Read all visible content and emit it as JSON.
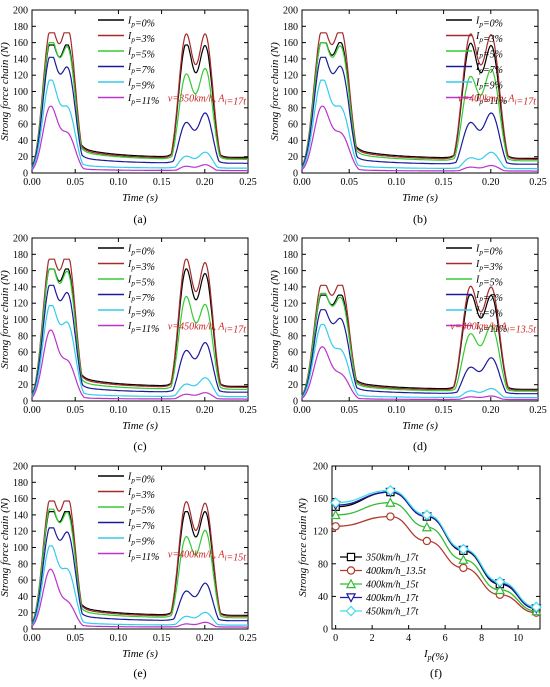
{
  "colors": {
    "p0": "#000000",
    "p3": "#a52a2a",
    "p5": "#33cc33",
    "p7": "#1a1a9c",
    "p9": "#33ccee",
    "p11": "#bb33cc",
    "annotation": "#cc2222",
    "f_350": "#000000",
    "f_400_13": "#b03a2e",
    "f_400_15": "#33bb33",
    "f_400_17": "#1a1aa0",
    "f_450": "#44ddee"
  },
  "chart_data": [
    {
      "panel": "(a)",
      "type": "line",
      "xlabel": "Time (s)",
      "ylabel": "Strong force chain (N)",
      "xlim": [
        0,
        0.25
      ],
      "ylim": [
        0,
        200
      ],
      "xticks": [
        "0.00",
        "0.05",
        "0.10",
        "0.15",
        "0.20",
        "0.25"
      ],
      "yticks": [
        "0",
        "20",
        "40",
        "60",
        "80",
        "100",
        "120",
        "140",
        "160",
        "180",
        "200"
      ],
      "annotation": "v=350km/h, A_l=17t",
      "legend": [
        "I_p=0%",
        "I_p=3%",
        "I_p=5%",
        "I_p=7%",
        "I_p=9%",
        "I_p=11%"
      ],
      "legend_position": "top-center",
      "base": [
        32,
        30,
        28,
        20,
        10,
        5
      ],
      "series": [
        {
          "name": "I_p=0%",
          "color_key": "p0",
          "peaks": [
            155,
            150,
            155,
            152
          ]
        },
        {
          "name": "I_p=3%",
          "color_key": "p3",
          "peaks": [
            170,
            170,
            166,
            166
          ]
        },
        {
          "name": "I_p=5%",
          "color_key": "p5",
          "peaks": [
            158,
            146,
            118,
            125
          ]
        },
        {
          "name": "I_p=7%",
          "color_key": "p7",
          "peaks": [
            140,
            122,
            60,
            72
          ]
        },
        {
          "name": "I_p=9%",
          "color_key": "p9",
          "peaks": [
            112,
            75,
            20,
            25
          ]
        },
        {
          "name": "I_p=11%",
          "color_key": "p11",
          "peaks": [
            80,
            45,
            8,
            10
          ]
        }
      ]
    },
    {
      "panel": "(b)",
      "type": "line",
      "xlabel": "Time (s)",
      "ylabel": "Strong force chain (N)",
      "xlim": [
        0,
        0.25
      ],
      "ylim": [
        0,
        200
      ],
      "xticks": [
        "0.00",
        "0.05",
        "0.10",
        "0.15",
        "0.20",
        "0.25"
      ],
      "yticks": [
        "0",
        "20",
        "40",
        "60",
        "80",
        "100",
        "120",
        "140",
        "160",
        "180",
        "200"
      ],
      "annotation": "v=400km/h, A_l=17t",
      "legend": [
        "I_p=0%",
        "I_p=3%",
        "I_p=5%",
        "I_p=7%",
        "I_p=9%",
        "I_p=11%"
      ],
      "legend_position": "top-right",
      "base": [
        30,
        28,
        25,
        18,
        9,
        4
      ],
      "series": [
        {
          "name": "I_p=0%",
          "color_key": "p0",
          "peaks": [
            158,
            152,
            155,
            152
          ]
        },
        {
          "name": "I_p=3%",
          "color_key": "p3",
          "peaks": [
            170,
            168,
            166,
            165
          ]
        },
        {
          "name": "I_p=5%",
          "color_key": "p5",
          "peaks": [
            158,
            147,
            115,
            124
          ]
        },
        {
          "name": "I_p=7%",
          "color_key": "p7",
          "peaks": [
            140,
            123,
            60,
            72
          ]
        },
        {
          "name": "I_p=9%",
          "color_key": "p9",
          "peaks": [
            112,
            75,
            18,
            25
          ]
        },
        {
          "name": "I_p=11%",
          "color_key": "p11",
          "peaks": [
            80,
            45,
            7,
            9
          ]
        }
      ]
    },
    {
      "panel": "(c)",
      "type": "line",
      "xlabel": "Time (s)",
      "ylabel": "Strong force chain (N)",
      "xlim": [
        0,
        0.25
      ],
      "ylim": [
        0,
        200
      ],
      "xticks": [
        "0.00",
        "0.05",
        "0.10",
        "0.15",
        "0.20",
        "0.25"
      ],
      "yticks": [
        "0",
        "20",
        "40",
        "60",
        "80",
        "100",
        "120",
        "140",
        "160",
        "180",
        "200"
      ],
      "annotation": "v=450km/h, A_l=17t",
      "legend": [
        "I_p=0%",
        "I_p=3%",
        "I_p=5%",
        "I_p=7%",
        "I_p=9%",
        "I_p=11%"
      ],
      "legend_position": "top-center",
      "base": [
        30,
        28,
        24,
        18,
        9,
        4
      ],
      "series": [
        {
          "name": "I_p=0%",
          "color_key": "p0",
          "peaks": [
            160,
            155,
            158,
            152
          ]
        },
        {
          "name": "I_p=3%",
          "color_key": "p3",
          "peaks": [
            172,
            172,
            170,
            165
          ]
        },
        {
          "name": "I_p=5%",
          "color_key": "p5",
          "peaks": [
            160,
            150,
            125,
            115
          ]
        },
        {
          "name": "I_p=7%",
          "color_key": "p7",
          "peaks": [
            140,
            125,
            60,
            70
          ]
        },
        {
          "name": "I_p=9%",
          "color_key": "p9",
          "peaks": [
            115,
            90,
            20,
            28
          ]
        },
        {
          "name": "I_p=11%",
          "color_key": "p11",
          "peaks": [
            85,
            45,
            8,
            10
          ]
        }
      ]
    },
    {
      "panel": "(d)",
      "type": "line",
      "xlabel": "Time (s)",
      "ylabel": "Strong force chain (N)",
      "xlim": [
        0,
        0.25
      ],
      "ylim": [
        0,
        200
      ],
      "xticks": [
        "0.00",
        "0.05",
        "0.10",
        "0.15",
        "0.20",
        "0.25"
      ],
      "yticks": [
        "0",
        "20",
        "40",
        "60",
        "80",
        "100",
        "120",
        "140",
        "160",
        "180",
        "200"
      ],
      "annotation": "v=400km/h, A_l=13.5t",
      "legend": [
        "I_p=0%",
        "I_p=3%",
        "I_p=5%",
        "I_p=7%",
        "I_p=9%",
        "I_p=11%"
      ],
      "legend_position": "top-right",
      "base": [
        24,
        22,
        20,
        15,
        7,
        3
      ],
      "series": [
        {
          "name": "I_p=0%",
          "color_key": "p0",
          "peaks": [
            128,
            125,
            128,
            126
          ]
        },
        {
          "name": "I_p=3%",
          "color_key": "p3",
          "peaks": [
            140,
            138,
            137,
            136
          ]
        },
        {
          "name": "I_p=5%",
          "color_key": "p5",
          "peaks": [
            130,
            120,
            80,
            90
          ]
        },
        {
          "name": "I_p=7%",
          "color_key": "p7",
          "peaks": [
            110,
            95,
            40,
            52
          ]
        },
        {
          "name": "I_p=9%",
          "color_key": "p9",
          "peaks": [
            92,
            58,
            12,
            15
          ]
        },
        {
          "name": "I_p=11%",
          "color_key": "p11",
          "peaks": [
            65,
            30,
            5,
            6
          ]
        }
      ]
    },
    {
      "panel": "(e)",
      "type": "line",
      "xlabel": "Time (s)",
      "ylabel": "Strong force chain (N)",
      "xlim": [
        0,
        0.25
      ],
      "ylim": [
        0,
        200
      ],
      "xticks": [
        "0.00",
        "0.05",
        "0.10",
        "0.15",
        "0.20",
        "0.25"
      ],
      "yticks": [
        "0",
        "20",
        "40",
        "60",
        "80",
        "100",
        "120",
        "140",
        "160",
        "180",
        "200"
      ],
      "annotation": "v=400km/h, A_l=15t",
      "legend": [
        "I_p=0%",
        "I_p=3%",
        "I_p=5%",
        "I_p=7%",
        "I_p=9%",
        "I_p=11%"
      ],
      "legend_position": "top-center",
      "base": [
        28,
        26,
        23,
        17,
        8,
        4
      ],
      "series": [
        {
          "name": "I_p=0%",
          "color_key": "p0",
          "peaks": [
            142,
            140,
            142,
            140
          ]
        },
        {
          "name": "I_p=3%",
          "color_key": "p3",
          "peaks": [
            155,
            155,
            152,
            150
          ]
        },
        {
          "name": "I_p=5%",
          "color_key": "p5",
          "peaks": [
            145,
            135,
            110,
            118
          ]
        },
        {
          "name": "I_p=7%",
          "color_key": "p7",
          "peaks": [
            122,
            112,
            45,
            55
          ]
        },
        {
          "name": "I_p=9%",
          "color_key": "p9",
          "peaks": [
            100,
            68,
            15,
            20
          ]
        },
        {
          "name": "I_p=11%",
          "color_key": "p11",
          "peaks": [
            72,
            30,
            6,
            8
          ]
        }
      ]
    },
    {
      "panel": "(f)",
      "type": "line",
      "xlabel": "I_p(%)",
      "ylabel": "Strong force chain (N)",
      "xlim": [
        -0.2,
        11.2
      ],
      "ylim": [
        0,
        200
      ],
      "xticks": [
        "0",
        "2",
        "4",
        "6",
        "8",
        "10"
      ],
      "yticks": [
        "0",
        "40",
        "80",
        "120",
        "160",
        "200"
      ],
      "legend_position": "bottom-left",
      "x": [
        0,
        3,
        5,
        7,
        9,
        11
      ],
      "series": [
        {
          "name": "350km/h_17t",
          "color_key": "f_350",
          "marker": "square",
          "values": [
            150,
            168,
            138,
            96,
            55,
            25
          ]
        },
        {
          "name": "400km/h_13.5t",
          "color_key": "f_400_13",
          "marker": "circle",
          "values": [
            126,
            138,
            108,
            75,
            42,
            20
          ]
        },
        {
          "name": "400km/h_15t",
          "color_key": "f_400_15",
          "marker": "triangle-up",
          "values": [
            140,
            155,
            125,
            85,
            48,
            22
          ]
        },
        {
          "name": "400km/h_17t",
          "color_key": "f_400_17",
          "marker": "triangle-down",
          "values": [
            152,
            168,
            138,
            97,
            56,
            25
          ]
        },
        {
          "name": "450km/h_17t",
          "color_key": "f_450",
          "marker": "diamond",
          "values": [
            155,
            170,
            140,
            98,
            58,
            27
          ]
        }
      ]
    }
  ]
}
